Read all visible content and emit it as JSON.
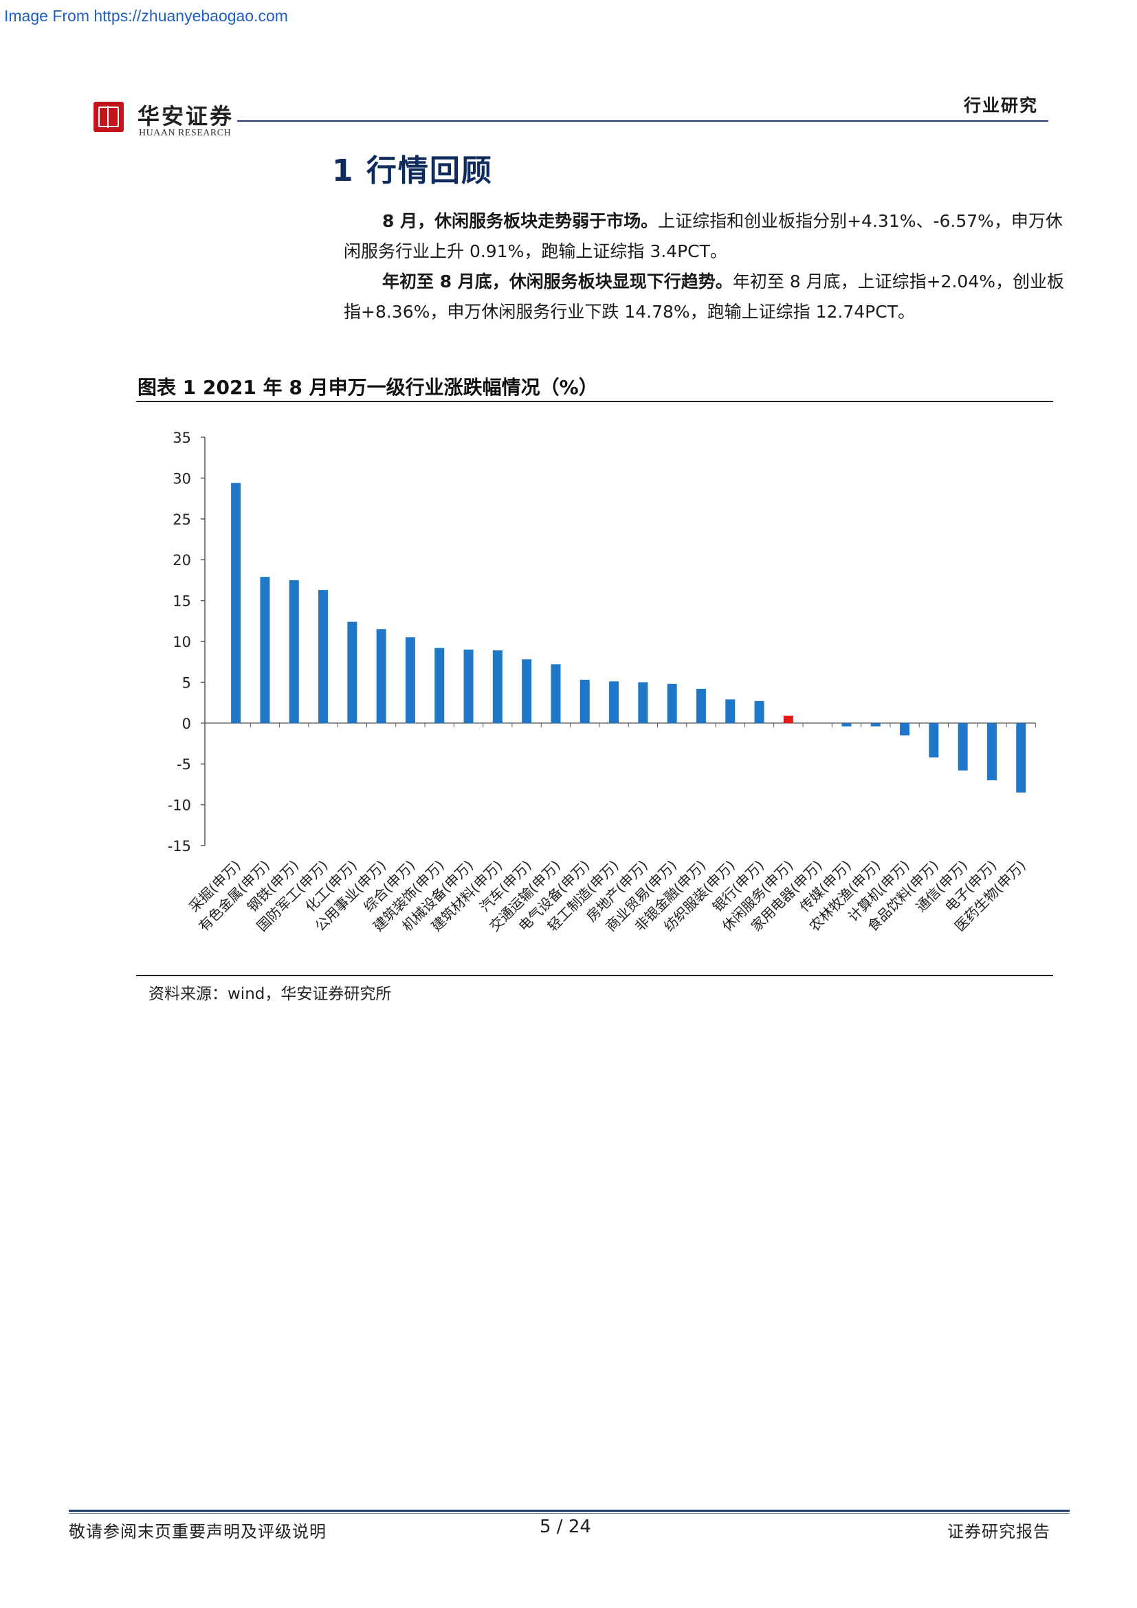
{
  "watermark": "Image From https://zhuanyebaogao.com",
  "header": {
    "logo_cn": "华安证券",
    "logo_en": "HUAAN RESEARCH",
    "category": "行业研究"
  },
  "section": {
    "title": "1 行情回顾"
  },
  "paragraphs": [
    {
      "lead": "8 月，休闲服务板块走势弱于市场。",
      "body": "上证综指和创业板指分别+4.31%、-6.57%，申万休闲服务行业上升 0.91%，跑输上证综指 3.4PCT。"
    },
    {
      "lead": "年初至 8 月底，休闲服务板块显现下行趋势。",
      "body": "年初至 8 月底，上证综指+2.04%，创业板指+8.36%，申万休闲服务行业下跌 14.78%，跑输上证综指 12.74PCT。"
    }
  ],
  "figure": {
    "title": "图表 1 2021 年 8 月申万一级行业涨跌幅情况（%）",
    "source": "资料来源：wind，华安证券研究所"
  },
  "chart_data": {
    "type": "bar",
    "title": "",
    "xlabel": "",
    "ylabel": "",
    "ylim": [
      -15,
      35
    ],
    "yticks": [
      35,
      30,
      25,
      20,
      15,
      10,
      5,
      0,
      -5,
      -10,
      -15
    ],
    "grid": false,
    "legend": "none",
    "colors": {
      "default": "#1f77c8",
      "highlight": "#e41a1c"
    },
    "highlight_category": "休闲服务(申万)",
    "categories": [
      "采掘(申万)",
      "有色金属(申万)",
      "钢铁(申万)",
      "国防军工(申万)",
      "化工(申万)",
      "公用事业(申万)",
      "综合(申万)",
      "建筑装饰(申万)",
      "机械设备(申万)",
      "建筑材料(申万)",
      "汽车(申万)",
      "交通运输(申万)",
      "电气设备(申万)",
      "轻工制造(申万)",
      "房地产(申万)",
      "商业贸易(申万)",
      "非银金融(申万)",
      "纺织服装(申万)",
      "银行(申万)",
      "休闲服务(申万)",
      "家用电器(申万)",
      "传媒(申万)",
      "农林牧渔(申万)",
      "计算机(申万)",
      "食品饮料(申万)",
      "通信(申万)",
      "电子(申万)",
      "医药生物(申万)"
    ],
    "values": [
      29.4,
      17.9,
      17.5,
      16.3,
      12.4,
      11.5,
      10.5,
      9.2,
      9.0,
      8.9,
      7.8,
      7.2,
      5.3,
      5.1,
      5.0,
      4.8,
      4.2,
      2.9,
      2.7,
      0.91,
      0.0,
      -0.4,
      -0.4,
      -1.5,
      -4.2,
      -5.8,
      -7.0,
      -8.5
    ]
  },
  "footer": {
    "disclaimer": "敬请参阅末页重要声明及评级说明",
    "page": "5 / 24",
    "doc_type": "证券研究报告"
  }
}
